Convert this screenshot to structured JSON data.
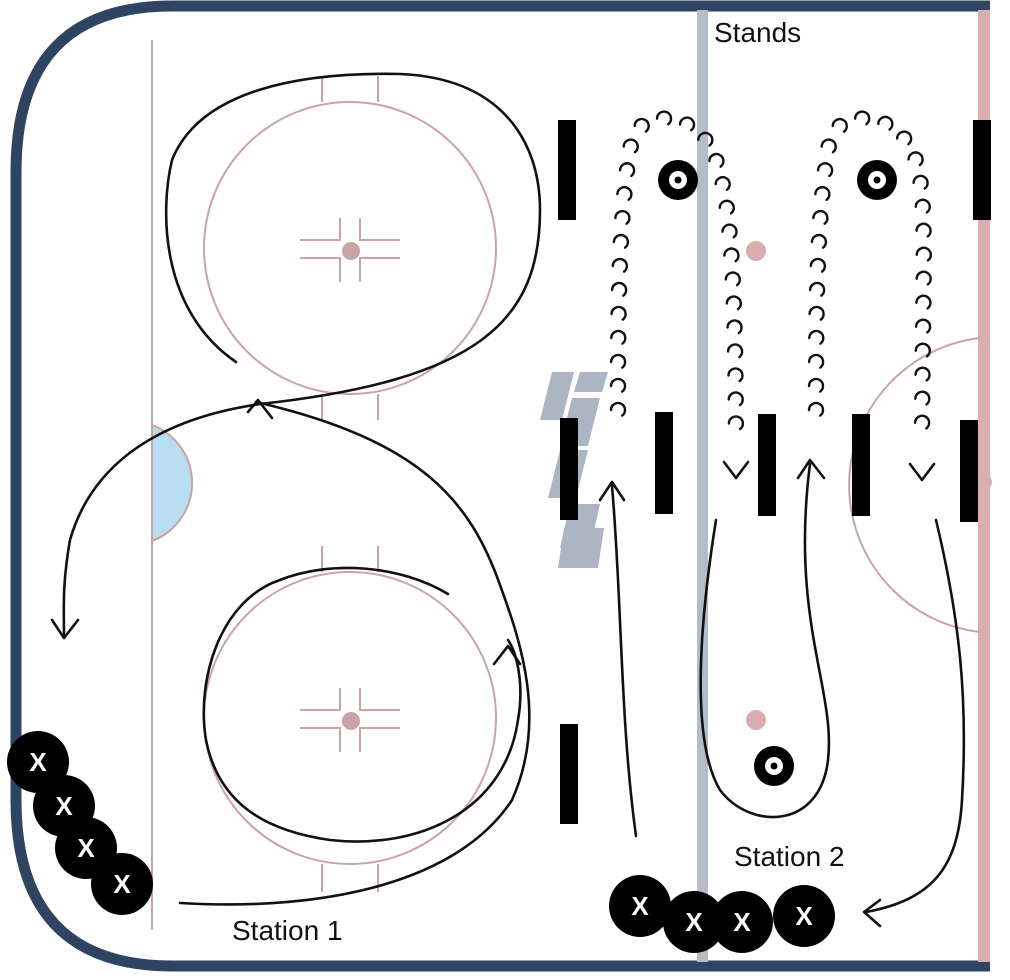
{
  "labels": {
    "stands": "Stands",
    "station_1": "Station 1",
    "station_2": "Station 2"
  },
  "players": {
    "marker": "X",
    "station_1_count": 4,
    "station_2_count": 4
  },
  "colors": {
    "boards": "#2f4460",
    "rink_lines": "#c9a3a6",
    "blue_line": "#b5bcc6",
    "red_line": "#d9aeb1",
    "crease": "#b8dcf0",
    "ink": "#111111"
  },
  "icons": {
    "puck": "target-icon",
    "pylon": "cone-icon"
  }
}
